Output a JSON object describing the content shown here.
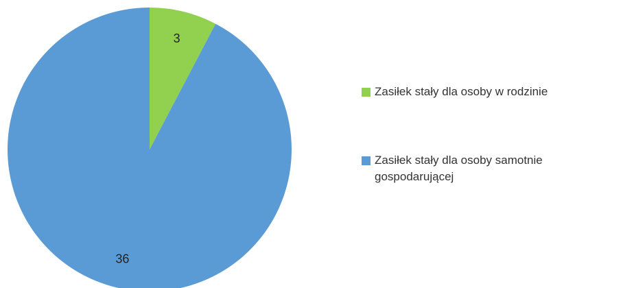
{
  "chart_data": {
    "type": "pie",
    "categories": [
      "Zasiłek stały dla osoby w rodzinie",
      "Zasiłek stały dla osoby samotnie gospodarującej"
    ],
    "values": [
      3,
      36
    ],
    "colors": [
      "#92d050",
      "#5b9bd5"
    ],
    "legend": "right"
  }
}
